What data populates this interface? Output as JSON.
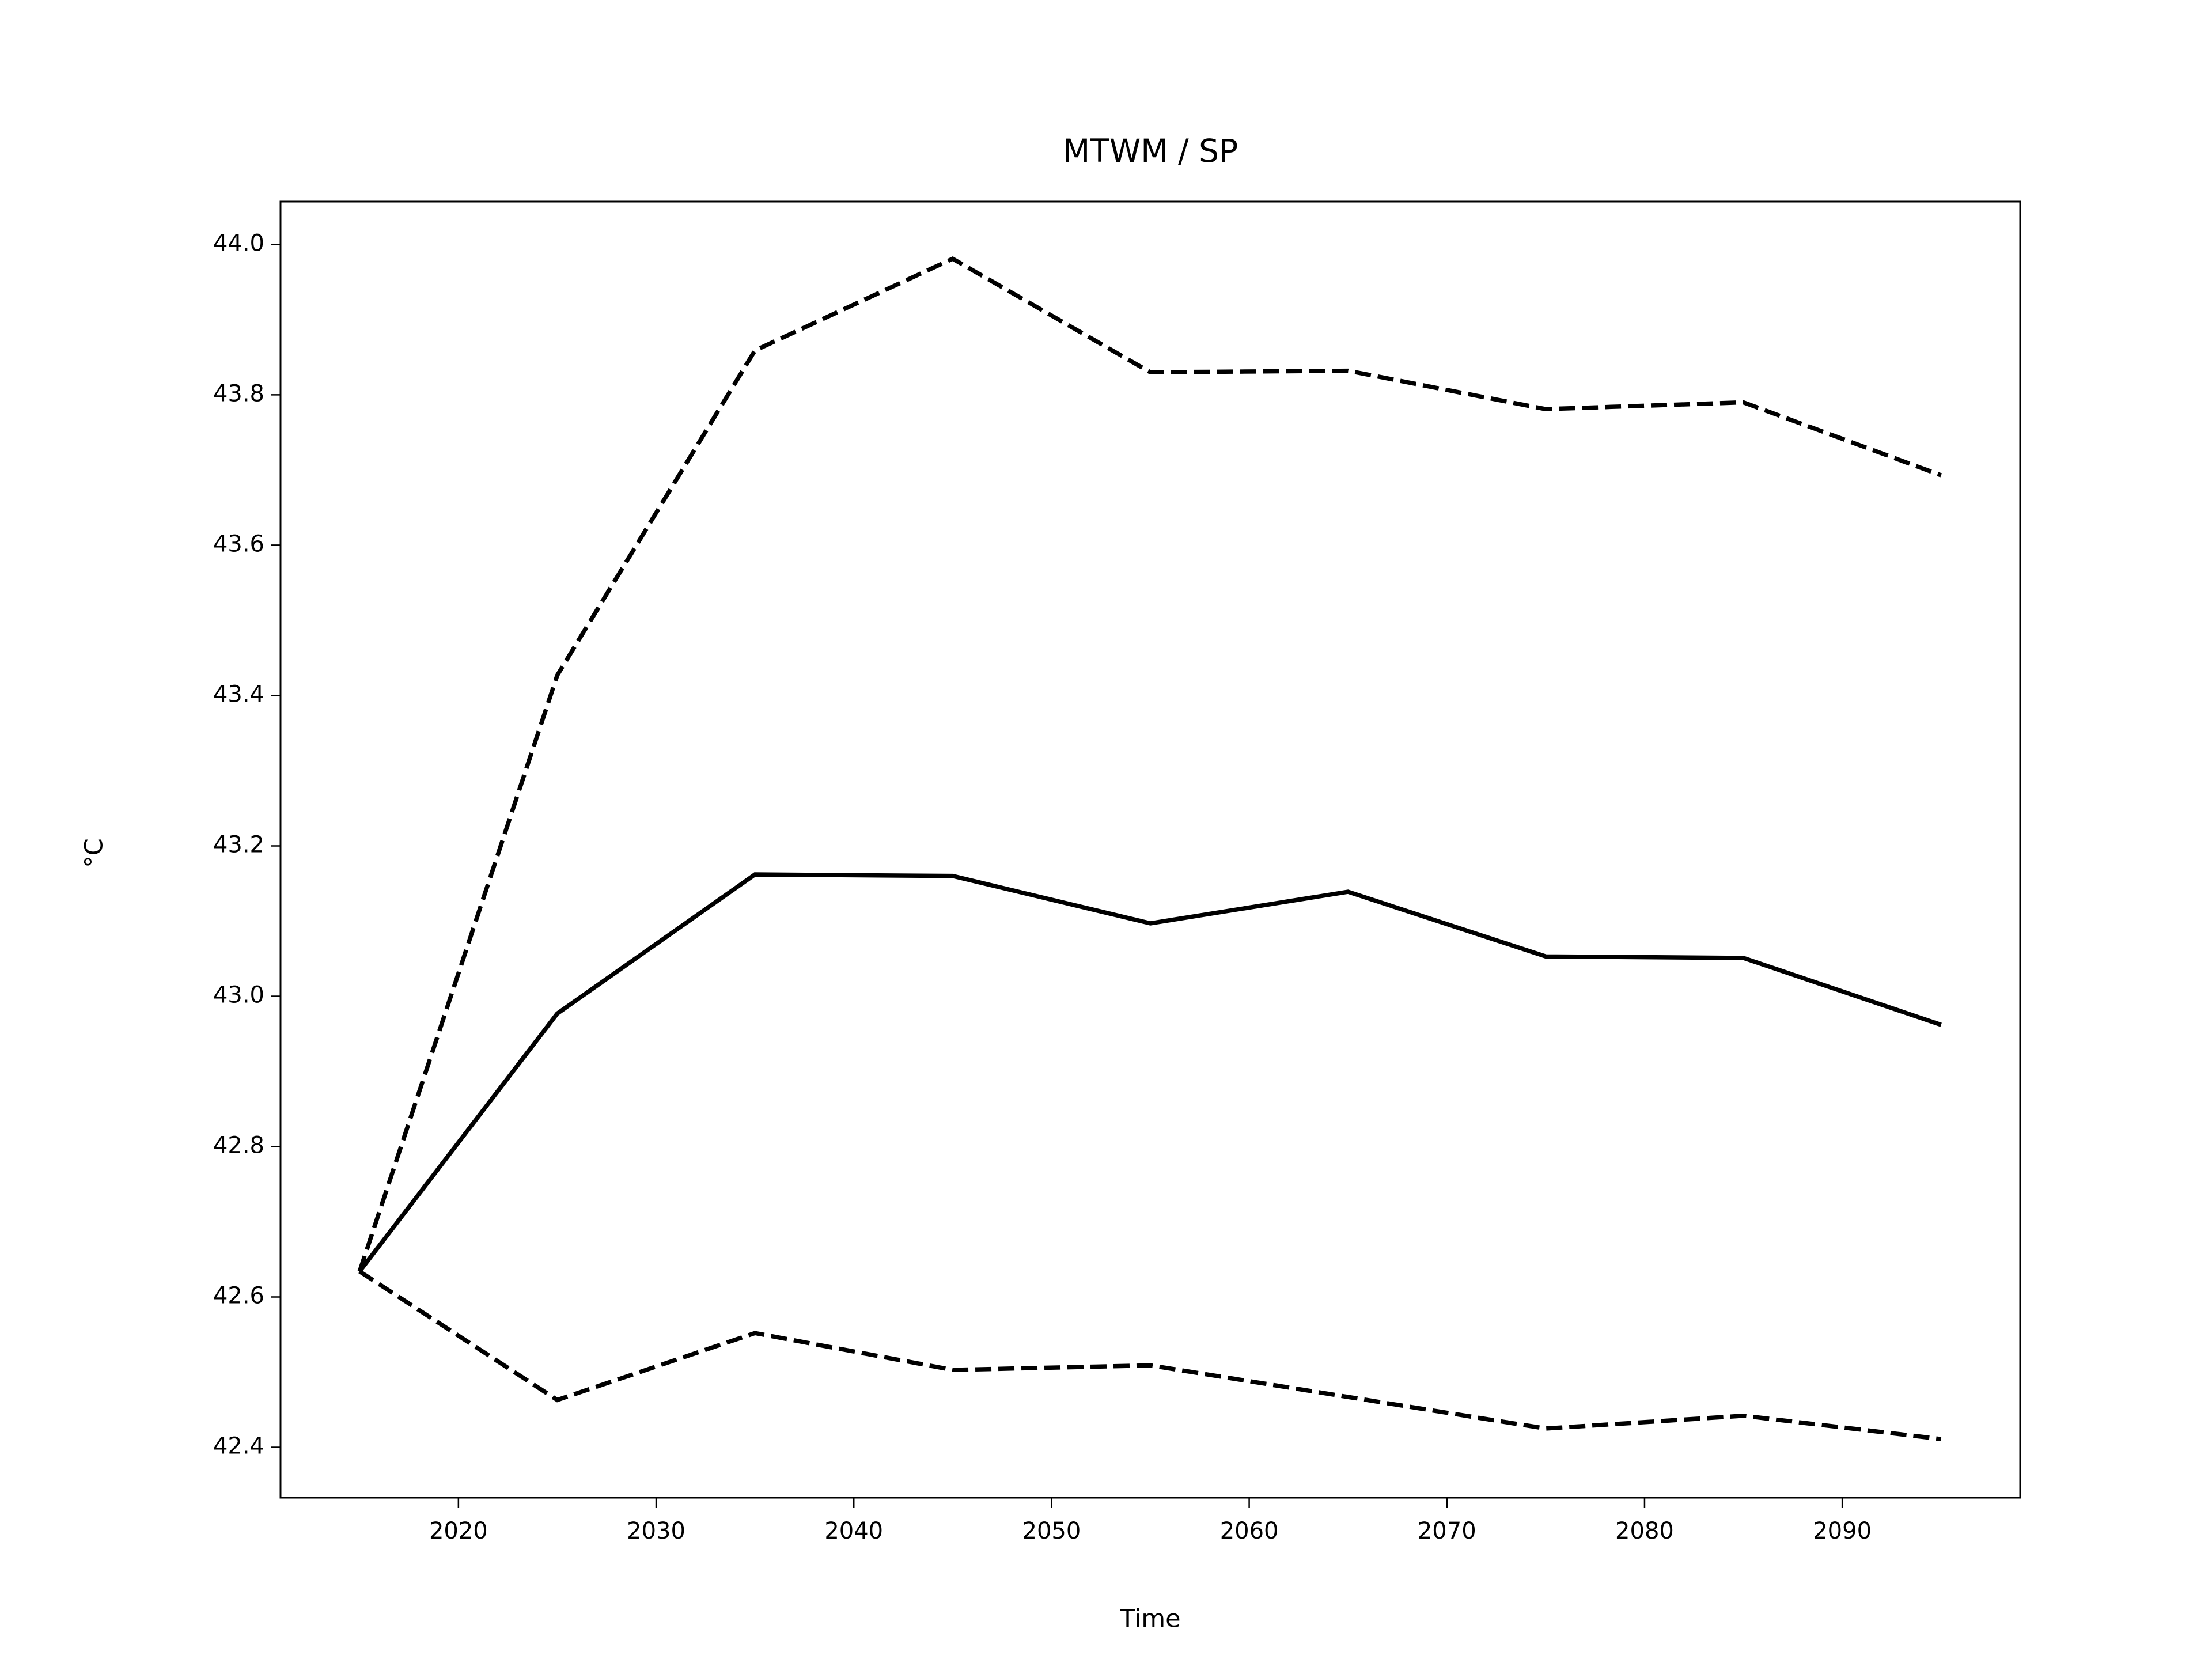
{
  "chart_data": {
    "type": "line",
    "title": "MTWM / SP",
    "x_label": "Time",
    "y_label": "°C",
    "x": [
      2015,
      2025,
      2035,
      2045,
      2055,
      2065,
      2075,
      2085,
      2095
    ],
    "series": [
      {
        "color": "#000000",
        "style": "dashed",
        "values": [
          42.634,
          43.427,
          43.859,
          43.981,
          43.83,
          43.832,
          43.781,
          43.79,
          43.693
        ]
      },
      {
        "color": "#000000",
        "style": "solid",
        "values": [
          42.634,
          42.977,
          43.162,
          43.16,
          43.097,
          43.139,
          43.053,
          43.051,
          42.962
        ]
      },
      {
        "color": "#000000",
        "style": "dashed",
        "values": [
          42.634,
          42.463,
          42.552,
          42.503,
          42.509,
          42.467,
          42.425,
          42.442,
          42.411
        ]
      }
    ],
    "xlim": [
      2011,
      2099
    ],
    "xticks": [
      2020,
      2030,
      2040,
      2050,
      2060,
      2070,
      2080,
      2090
    ],
    "ylim": [
      42.333,
      44.057
    ],
    "yticks": [
      42.4,
      42.6,
      42.8,
      {
        "value": 43,
        "label": "43.0"
      },
      43.2,
      43.4,
      43.6,
      43.8,
      {
        "value": 44,
        "label": "44.0"
      }
    ],
    "grid": false
  }
}
